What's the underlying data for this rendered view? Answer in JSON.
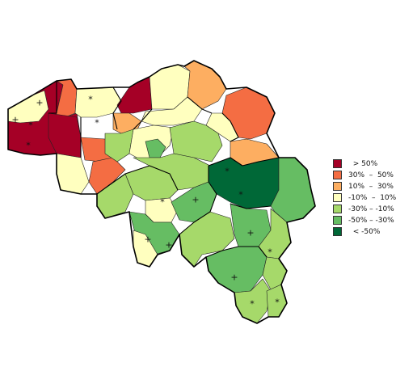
{
  "legend": [
    {
      "label": "  > 50%",
      "color": "#a50026"
    },
    {
      "label": "30%  –  50%",
      "color": "#f46d43"
    },
    {
      "label": "10%  –  30%",
      "color": "#fdae61"
    },
    {
      "label": "-10%  –  10%",
      "color": "#ffffbf"
    },
    {
      "label": "-30% – -10%",
      "color": "#a6d96a"
    },
    {
      "label": "-50% – -30%",
      "color": "#66bd63"
    },
    {
      "label": "  < -50%",
      "color": "#006837"
    }
  ],
  "markers": {
    "star": "*",
    "plus": "+"
  }
}
